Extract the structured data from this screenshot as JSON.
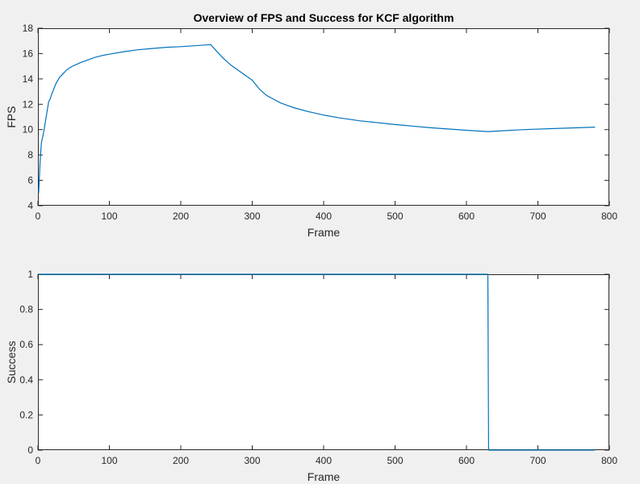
{
  "chart_data": [
    {
      "type": "line",
      "title": "Overview of FPS and Success for KCF algorithm",
      "xlabel": "Frame",
      "ylabel": "FPS",
      "xlim": [
        0,
        800
      ],
      "ylim": [
        4,
        18
      ],
      "xticks": [
        0,
        100,
        200,
        300,
        400,
        500,
        600,
        700,
        800
      ],
      "yticks": [
        4,
        6,
        8,
        10,
        12,
        14,
        16,
        18
      ],
      "grid": false,
      "line_color": "#0072bd",
      "axes_color": "#262626",
      "background": "#ffffff",
      "series": [
        {
          "x": [
            1,
            2,
            3,
            5,
            8,
            10,
            13,
            15,
            17,
            20,
            25,
            30,
            35,
            40,
            45,
            50,
            60,
            70,
            80,
            90,
            100,
            120,
            140,
            160,
            180,
            200,
            220,
            235,
            242,
            250,
            260,
            270,
            280,
            290,
            300,
            310,
            320,
            330,
            340,
            350,
            360,
            380,
            400,
            420,
            450,
            500,
            550,
            600,
            630,
            680,
            730,
            780
          ],
          "y": [
            5.0,
            6.2,
            7.5,
            9.0,
            9.8,
            10.5,
            11.5,
            12.2,
            12.4,
            12.9,
            13.6,
            14.1,
            14.4,
            14.7,
            14.9,
            15.05,
            15.3,
            15.5,
            15.7,
            15.85,
            15.95,
            16.15,
            16.3,
            16.4,
            16.5,
            16.55,
            16.62,
            16.68,
            16.7,
            16.2,
            15.6,
            15.1,
            14.7,
            14.3,
            13.9,
            13.2,
            12.7,
            12.4,
            12.1,
            11.9,
            11.7,
            11.4,
            11.15,
            10.95,
            10.7,
            10.4,
            10.15,
            9.95,
            9.85,
            10.0,
            10.1,
            10.2
          ]
        }
      ]
    },
    {
      "type": "line",
      "title": "",
      "xlabel": "Frame",
      "ylabel": "Success",
      "xlim": [
        0,
        800
      ],
      "ylim": [
        0,
        1
      ],
      "xticks": [
        0,
        100,
        200,
        300,
        400,
        500,
        600,
        700,
        800
      ],
      "yticks": [
        0,
        0.2,
        0.4,
        0.6,
        0.8,
        1
      ],
      "grid": false,
      "line_color": "#0072bd",
      "axes_color": "#262626",
      "background": "#ffffff",
      "series": [
        {
          "x": [
            1,
            630,
            631,
            780
          ],
          "y": [
            1,
            1,
            0,
            0
          ]
        }
      ]
    }
  ]
}
